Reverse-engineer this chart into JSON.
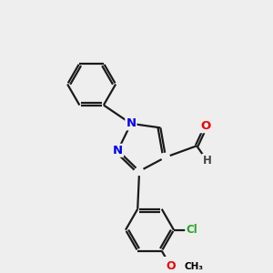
{
  "background_color": "#eeeeee",
  "bond_color": "#1a1a1a",
  "atom_colors": {
    "N": "#0000ee",
    "O": "#ee0000",
    "Cl": "#22aa22",
    "O_methoxy": "#ee0000",
    "H": "#555555"
  },
  "lw": 1.6,
  "double_sep": 0.11,
  "figsize": [
    3.0,
    3.0
  ],
  "dpi": 100,
  "xlim": [
    0,
    10
  ],
  "ylim": [
    0,
    10
  ]
}
